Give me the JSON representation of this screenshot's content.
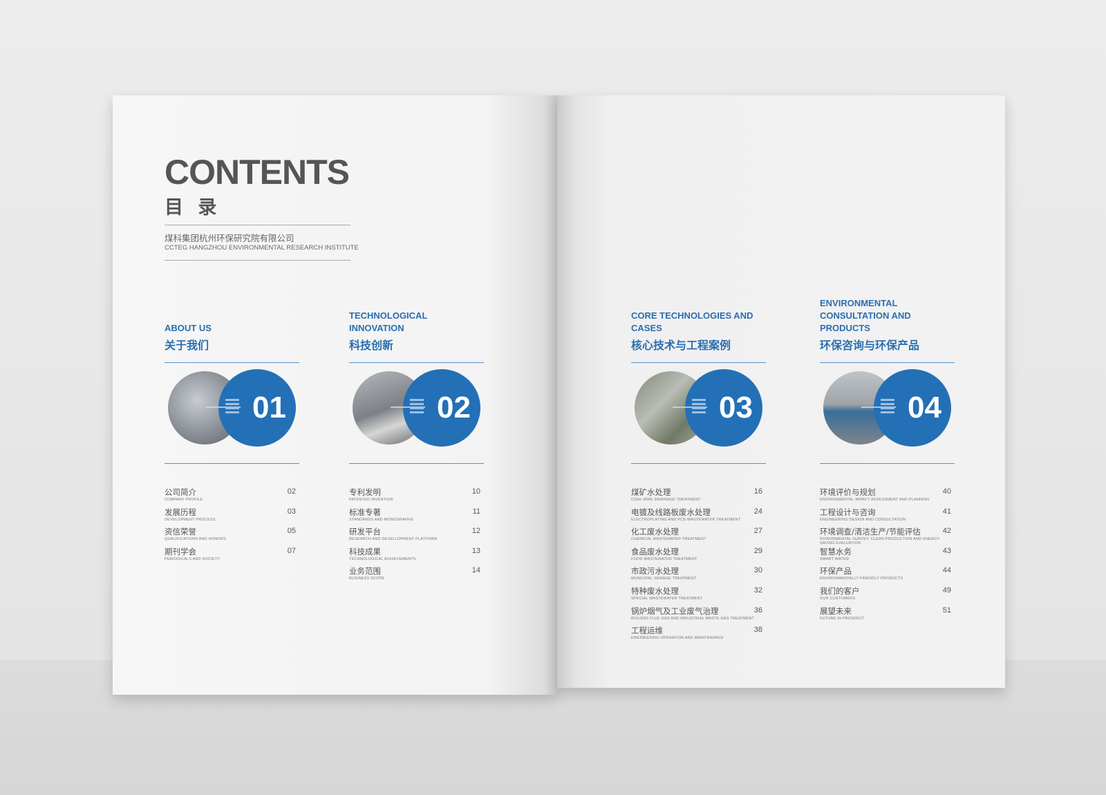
{
  "header": {
    "title": "CONTENTS",
    "subtitle": "目 录",
    "company_cn": "煤科集团杭州环保研究院有限公司",
    "company_en": "CCTEG HANGZHOU ENVIRONMENTAL RESEARCH INSTITUTE"
  },
  "accent": "#2370b7",
  "sections": [
    {
      "en": "ABOUT US",
      "cn": "关于我们",
      "num": "01",
      "items": [
        {
          "cn": "公司简介",
          "en": "COMPANY PROFILE",
          "page": "02"
        },
        {
          "cn": "发展历程",
          "en": "DEVELOPMENT PROCESS",
          "page": "03"
        },
        {
          "cn": "资信荣誉",
          "en": "QUALIFICATIONS AND HONORS",
          "page": "05"
        },
        {
          "cn": "期刊学会",
          "en": "PERIODICALS AND SOCIETY",
          "page": "07"
        }
      ]
    },
    {
      "en": "TECHNOLOGICAL INNOVATION",
      "cn": "科技创新",
      "num": "02",
      "items": [
        {
          "cn": "专利发明",
          "en": "PATENTED INVENTION",
          "page": "10"
        },
        {
          "cn": "标准专著",
          "en": "STANDARDS AND MONOGRAPHS",
          "page": "11"
        },
        {
          "cn": "研发平台",
          "en": "RESEARCH AND DEVELLOPMENT PLATFORM",
          "page": "12"
        },
        {
          "cn": "科技成果",
          "en": "TECHNOLOGICAL ACHIEVEMENTS",
          "page": "13"
        },
        {
          "cn": "业务范围",
          "en": "BUSINESS SCOPE",
          "page": "14"
        }
      ]
    },
    {
      "en": "CORE TECHNOLOGIES AND CASES",
      "cn": "核心技术与工程案例",
      "num": "03",
      "items": [
        {
          "cn": "煤矿水处理",
          "en": "COAL MINE DRAINAGE TREATMENT",
          "page": "16"
        },
        {
          "cn": "电镀及线路板废水处理",
          "en": "ELECTROPLATING AND PCB WASTEWATER TREATMENT",
          "page": "24"
        },
        {
          "cn": "化工废水处理",
          "en": "CHEMICAL WASTEWATER TREATMENT",
          "page": "27"
        },
        {
          "cn": "食品废水处理",
          "en": "FOOD WASTEWATER TREATMENT",
          "page": "29"
        },
        {
          "cn": "市政污水处理",
          "en": "MUNICIPAL SEWAGE TREATMENT",
          "page": "30"
        },
        {
          "cn": "特种废水处理",
          "en": "SPECIAL WASTEWATER TREATMENT",
          "page": "32"
        },
        {
          "cn": "锅炉烟气及工业废气治理",
          "en": "BOILERS FLUE GAS AND INDUSTRIAL WASTE GAS TREATMENT",
          "page": "36"
        },
        {
          "cn": "工程运维",
          "en": "ENGINEERING OPERATION AND MAINTENANCE",
          "page": "38"
        }
      ]
    },
    {
      "en": "ENVIRONMENTAL CONSULTATION AND PRODUCTS",
      "cn": "环保咨询与环保产品",
      "num": "04",
      "items": [
        {
          "cn": "环境评价与规划",
          "en": "ENVIRONMENTAL IMPACT ASSESSMENT AND PLANNING",
          "page": "40"
        },
        {
          "cn": "工程设计与咨询",
          "en": "ENGINEERING DESIGN AND CONSULTATION",
          "page": "41"
        },
        {
          "cn": "环境调查/清洁生产/节能评估",
          "en": "NVIRONMENTAL SURVEY, CLEAN PRODUCTION AND ENERGY SAVING EVALUATION",
          "page": "42"
        },
        {
          "cn": "智慧水务",
          "en": "SMART WATER",
          "page": "43"
        },
        {
          "cn": "环保产品",
          "en": "ENVIRONMENTALLY FRIENDLY PRODUCTS",
          "page": "44"
        },
        {
          "cn": "我们的客户",
          "en": "OUR CUSTOMERS",
          "page": "49"
        },
        {
          "cn": "展望未来",
          "en": "FUTURE IN PROSPECT",
          "page": "51"
        }
      ]
    }
  ]
}
